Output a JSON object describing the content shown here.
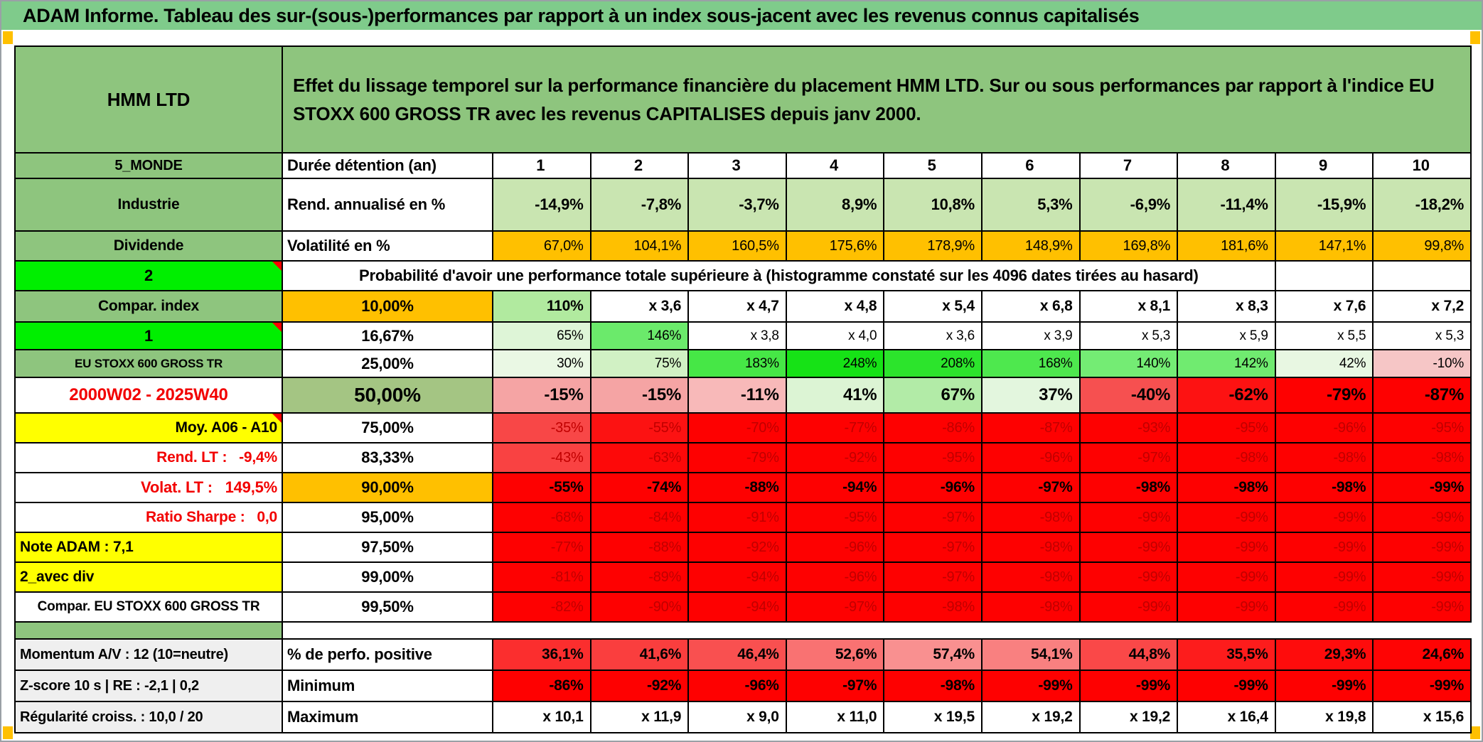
{
  "title": "ADAM Informe. Tableau des sur-(sous-)performances par rapport à un index sous-jacent avec les revenus connus capitalisés",
  "header": {
    "name": "HMM LTD",
    "description": "Effet du lissage temporel sur la performance financière du placement HMM LTD. Sur ou sous performances par rapport à l'indice EU STOXX 600 GROSS TR avec les revenus CAPITALISES depuis janv 2000."
  },
  "colors": {
    "title_green": "#7fcb8b",
    "label_green": "#8ec57e",
    "bright_green": "#00ef00",
    "orange": "#ffc000",
    "yellow": "#ffff00",
    "red": "#fe0101",
    "dark_red_text": "#c00000",
    "red_label_text": "#f20000",
    "sage_green": "#a4c583",
    "light_green": "#c9e5b1",
    "gray_label": "#efefef"
  },
  "grid": {
    "cols": {
      "values": [
        "1",
        "2",
        "3",
        "4",
        "5",
        "6",
        "7",
        "8",
        "9",
        "10"
      ],
      "cls": "b sz22",
      "align": "center",
      "bgAll": "#ffffff"
    },
    "monde": {
      "label": "5_MONDE",
      "sub": "Durée détention (an)"
    },
    "industrie": {
      "label": "Industrie",
      "sub": "Rend. annualisé en %",
      "values": [
        "-14,9%",
        "-7,8%",
        "-3,7%",
        "8,9%",
        "10,8%",
        "5,3%",
        "-6,9%",
        "-11,4%",
        "-15,9%",
        "-18,2%"
      ],
      "bgAll": "#c9e5b1",
      "cls": "b sz22"
    },
    "dividende": {
      "label": "Dividende",
      "sub": "Volatilité en %",
      "values": [
        "67,0%",
        "104,1%",
        "160,5%",
        "175,6%",
        "178,9%",
        "148,9%",
        "169,8%",
        "181,6%",
        "147,1%",
        "99,8%"
      ],
      "bgAll": "#ffc000",
      "cls": "reg sz20"
    },
    "prob": {
      "label": "2",
      "text": "Probabilité d'avoir une performance totale supérieure à (histogramme constaté sur les 4096 dates tirées au hasard)"
    },
    "p10": {
      "label": "Compar. index",
      "sub": "10,00%",
      "values": [
        "110%",
        "x 3,6",
        "x 4,7",
        "x 4,8",
        "x 5,4",
        "x 6,8",
        "x 8,1",
        "x 8,3",
        "x 7,6",
        "x 7,2"
      ],
      "bg": [
        "#b1ea9f",
        "",
        "",
        "",
        "",
        "",
        "",
        "",
        "",
        ""
      ],
      "cls": "b sz21"
    },
    "p16": {
      "label": "1",
      "sub": "16,67%",
      "values": [
        "65%",
        "146%",
        "x 3,8",
        "x 4,0",
        "x 3,6",
        "x 3,9",
        "x 5,3",
        "x 5,9",
        "x 5,5",
        "x 5,3"
      ],
      "bg": [
        "#def5d7",
        "#6bea6b",
        "",
        "",
        "",
        "",
        "",
        "",
        "",
        ""
      ],
      "cls": "reg sz19"
    },
    "p25": {
      "label": "EU STOXX 600 GROSS TR",
      "sub": "25,00%",
      "values": [
        "30%",
        "75%",
        "183%",
        "248%",
        "208%",
        "168%",
        "140%",
        "142%",
        "42%",
        "-10%"
      ],
      "bg": [
        "#eaf8e4",
        "#d1f1c4",
        "#46e746",
        "#16e216",
        "#2ce42c",
        "#4ee84e",
        "#74ec74",
        "#70eb70",
        "#e8f7e2",
        "#f6c6c6"
      ],
      "cls": "reg sz19"
    },
    "p50": {
      "label": "2000W02 - 2025W40",
      "sub": "50,00%",
      "values": [
        "-15%",
        "-15%",
        "-11%",
        "41%",
        "67%",
        "37%",
        "-40%",
        "-62%",
        "-79%",
        "-87%"
      ],
      "bg": [
        "#f5a4a4",
        "#f5a4a4",
        "#f8b9b9",
        "#dcf4d4",
        "#b2eba7",
        "#e3f6de",
        "#f65050",
        "#fd1212",
        "#fe0101",
        "#fe0101"
      ],
      "cls": "b sz24"
    },
    "p75": {
      "label": "Moy. A06 - A10",
      "sub": "75,00%",
      "values": [
        "-35%",
        "-55%",
        "-70%",
        "-77%",
        "-86%",
        "-87%",
        "-93%",
        "-95%",
        "-96%",
        "-95%"
      ],
      "bg": [
        "#f84747",
        "#fc1212",
        "#fe0101",
        "#fe0101",
        "#fe0101",
        "#fe0101",
        "#fe0101",
        "#fe0101",
        "#fe0101",
        "#fe0101"
      ],
      "fg": "#c00000",
      "cls": "reg sz20"
    },
    "p83": {
      "label": "Rend. LT :   -9,4%",
      "sub": "83,33%",
      "values": [
        "-43%",
        "-63%",
        "-79%",
        "-92%",
        "-95%",
        "-96%",
        "-97%",
        "-98%",
        "-98%",
        "-98%"
      ],
      "bg": [
        "#f94242",
        "#fd0909",
        "#fe0101",
        "#fe0101",
        "#fe0101",
        "#fe0101",
        "#fe0101",
        "#fe0101",
        "#fe0101",
        "#fe0101"
      ],
      "fg": "#c00000",
      "cls": "reg sz20"
    },
    "p90": {
      "label": "Volat. LT :   149,5%",
      "sub": "90,00%",
      "values": [
        "-55%",
        "-74%",
        "-88%",
        "-94%",
        "-96%",
        "-97%",
        "-98%",
        "-98%",
        "-98%",
        "-99%"
      ],
      "bgAll": "#fe0101",
      "cls": "b sz21"
    },
    "p95": {
      "label": "Ratio Sharpe :   0,0",
      "sub": "95,00%",
      "values": [
        "-68%",
        "-84%",
        "-91%",
        "-95%",
        "-97%",
        "-98%",
        "-99%",
        "-99%",
        "-99%",
        "-99%"
      ],
      "bgAll": "#fe0101",
      "fg": "#c00000",
      "cls": "reg sz20"
    },
    "p975": {
      "label": "Note ADAM : 7,1",
      "sub": "97,50%",
      "values": [
        "-77%",
        "-88%",
        "-92%",
        "-96%",
        "-97%",
        "-98%",
        "-99%",
        "-99%",
        "-99%",
        "-99%"
      ],
      "bgAll": "#fe0101",
      "fg": "#c00000",
      "cls": "reg sz20"
    },
    "p99": {
      "label": "2_avec div",
      "sub": "99,00%",
      "values": [
        "-81%",
        "-89%",
        "-94%",
        "-96%",
        "-97%",
        "-98%",
        "-99%",
        "-99%",
        "-99%",
        "-99%"
      ],
      "bgAll": "#fe0101",
      "fg": "#c00000",
      "cls": "reg sz20"
    },
    "p995": {
      "label": "Compar. EU STOXX 600 GROSS TR",
      "sub": "99,50%",
      "values": [
        "-82%",
        "-90%",
        "-94%",
        "-97%",
        "-98%",
        "-98%",
        "-99%",
        "-99%",
        "-99%",
        "-99%"
      ],
      "bgAll": "#fe0101",
      "fg": "#c00000",
      "cls": "reg sz20"
    },
    "perfo": {
      "label": "Momentum A/V : 12 (10=neutre)",
      "sub": "% de perfo. positive",
      "values": [
        "36,1%",
        "41,6%",
        "46,4%",
        "52,6%",
        "57,4%",
        "54,1%",
        "44,8%",
        "35,5%",
        "29,3%",
        "24,6%"
      ],
      "bg": [
        "#fb2e2e",
        "#fa3e3e",
        "#f95050",
        "#f97272",
        "#f99090",
        "#f98080",
        "#fa4848",
        "#fd1c1c",
        "#fe0c0c",
        "#fe0404"
      ],
      "cls": "b sz21"
    },
    "minimum": {
      "label": "Z-score 10 s | RE : -2,1 | 0,2",
      "sub": "Minimum",
      "values": [
        "-86%",
        "-92%",
        "-96%",
        "-97%",
        "-98%",
        "-99%",
        "-99%",
        "-99%",
        "-99%",
        "-99%"
      ],
      "bgAll": "#fe0101",
      "cls": "b sz21"
    },
    "maximum": {
      "label": "Régularité croiss. : 10,0 / 20",
      "sub": "Maximum",
      "values": [
        "x 10,1",
        "x 11,9",
        "x 9,0",
        "x 11,0",
        "x 19,5",
        "x 19,2",
        "x 19,2",
        "x 16,4",
        "x 19,8",
        "x 15,6"
      ],
      "bgAll": "#ffffff",
      "cls": "b sz21"
    }
  }
}
